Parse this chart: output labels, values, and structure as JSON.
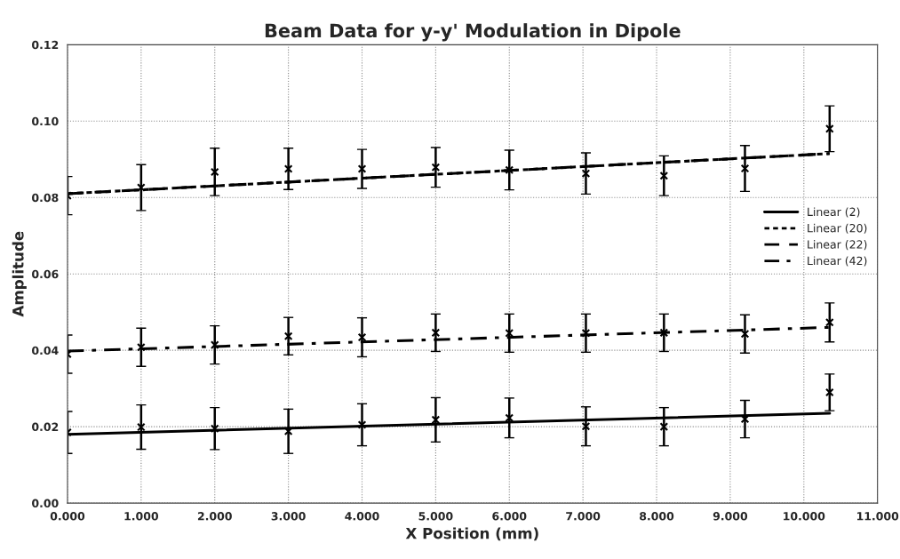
{
  "chart_data": {
    "type": "line",
    "title": "Beam Data for y-y' Modulation in Dipole",
    "xlabel": "X Position (mm)",
    "ylabel": "Amplitude",
    "xlim": [
      0,
      11
    ],
    "ylim": [
      0,
      0.12
    ],
    "xticks": [
      {
        "value": 0,
        "label": "0.000"
      },
      {
        "value": 1,
        "label": "1.000"
      },
      {
        "value": 2,
        "label": "2.000"
      },
      {
        "value": 3,
        "label": "3.000"
      },
      {
        "value": 4,
        "label": "4.000"
      },
      {
        "value": 5,
        "label": "5.000"
      },
      {
        "value": 6,
        "label": "6.000"
      },
      {
        "value": 7,
        "label": "7.000"
      },
      {
        "value": 8,
        "label": "8.000"
      },
      {
        "value": 9,
        "label": "9.000"
      },
      {
        "value": 10,
        "label": "10.000"
      },
      {
        "value": 11,
        "label": "11.000"
      }
    ],
    "yticks": [
      {
        "value": 0,
        "label": "0.00"
      },
      {
        "value": 0.02,
        "label": "0.02"
      },
      {
        "value": 0.04,
        "label": "0.04"
      },
      {
        "value": 0.06,
        "label": "0.06"
      },
      {
        "value": 0.08,
        "label": "0.08"
      },
      {
        "value": 0.1,
        "label": "0.10"
      },
      {
        "value": 0.12,
        "label": "0.12"
      }
    ],
    "grid": true,
    "legend": "right",
    "marker": "none",
    "series": [
      {
        "type": "scatter",
        "marker": "cross",
        "color": "#000000",
        "x": [
          0,
          1,
          2,
          3,
          4,
          5,
          6,
          7.04,
          8.1,
          9.2,
          10.35
        ],
        "values": [
          0.0185,
          0.0199,
          0.0195,
          0.0188,
          0.0205,
          0.0218,
          0.0223,
          0.0201,
          0.02,
          0.022,
          0.029
        ],
        "errors": [
          0.0055,
          0.0058,
          0.0055,
          0.0058,
          0.0055,
          0.0058,
          0.0052,
          0.0051,
          0.005,
          0.0049,
          0.0048
        ]
      },
      {
        "type": "scatter",
        "marker": "cross",
        "color": "#000000",
        "x": [
          0,
          1,
          2,
          3,
          4,
          5,
          6,
          7.04,
          8.1,
          9.2,
          10.35
        ],
        "values": [
          0.039,
          0.0408,
          0.0414,
          0.0437,
          0.0434,
          0.0446,
          0.0445,
          0.0445,
          0.0446,
          0.0443,
          0.0473
        ],
        "errors": [
          0.005,
          0.005,
          0.005,
          0.0049,
          0.0051,
          0.0049,
          0.005,
          0.005,
          0.0049,
          0.005,
          0.0051
        ]
      },
      {
        "type": "scatter",
        "marker": "cross",
        "color": "#000000",
        "x": [
          0,
          1,
          2,
          3,
          4,
          5,
          6,
          7.04,
          8.1,
          9.2,
          10.35
        ],
        "values": [
          0.0805,
          0.0826,
          0.0867,
          0.0875,
          0.0875,
          0.0879,
          0.0872,
          0.0863,
          0.0857,
          0.0876,
          0.098
        ],
        "errors": [
          0.005,
          0.006,
          0.0062,
          0.0054,
          0.0051,
          0.0052,
          0.0052,
          0.0054,
          0.0052,
          0.006,
          0.006
        ]
      },
      {
        "name": "Linear (2)",
        "color": "#000000",
        "line_style": "solid",
        "x": [
          0,
          10.35
        ],
        "values": [
          0.018,
          0.0235
        ]
      },
      {
        "name": "Linear (20)",
        "color": "#000000",
        "line_style": "dotted",
        "x": [
          0,
          10.35
        ],
        "values": [
          0.081,
          0.0915
        ]
      },
      {
        "name": "Linear (22)",
        "color": "#000000",
        "line_style": "dashed",
        "x": [
          0,
          10.35
        ],
        "values": [
          0.081,
          0.0915
        ]
      },
      {
        "name": "Linear (42)",
        "color": "#000000",
        "line_style": "dashdot",
        "x": [
          0,
          10.35
        ],
        "values": [
          0.0398,
          0.046
        ]
      }
    ]
  }
}
